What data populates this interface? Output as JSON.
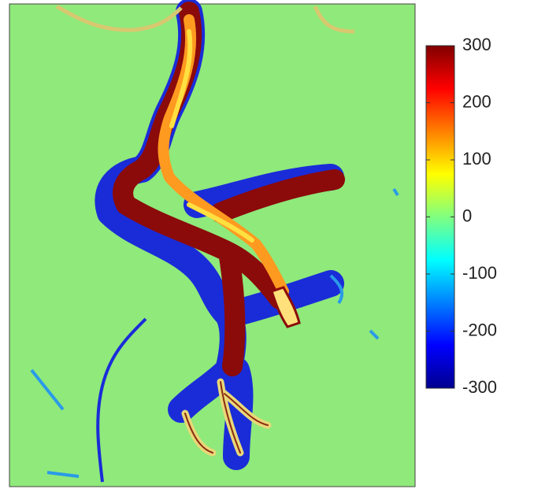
{
  "chart_data": {
    "type": "colorbar",
    "clim": [
      -300,
      300
    ],
    "ticks": [
      300,
      200,
      100,
      0,
      -100,
      -200,
      -300
    ],
    "colormap": [
      "#00008f",
      "#0000ff",
      "#0080ff",
      "#00ffff",
      "#80ff80",
      "#ffff00",
      "#ff8000",
      "#ff0000",
      "#800000"
    ]
  }
}
